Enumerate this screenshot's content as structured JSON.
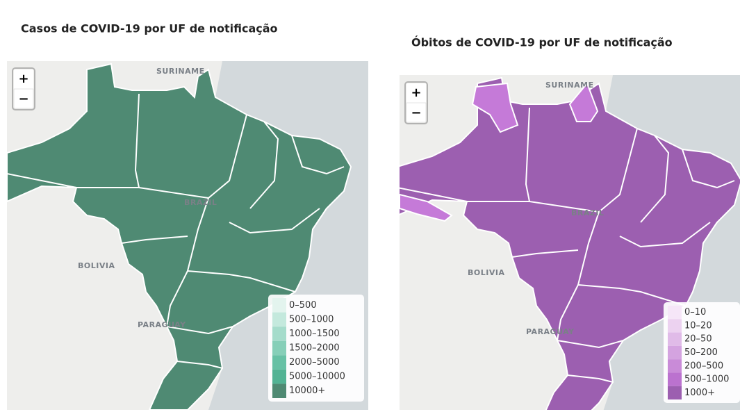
{
  "panels": [
    {
      "title": "Casos de COVID-19 por UF de notificação",
      "zoom": {
        "in": "+",
        "out": "−"
      },
      "labels": [
        "SURINAME",
        "BRAZIL",
        "BOLIVIA",
        "PARAGUAY"
      ],
      "fill": "#4f8a73",
      "legend": [
        {
          "label": "0–500",
          "color": "#e3f4ee"
        },
        {
          "label": "500–1000",
          "color": "#c4e9dd"
        },
        {
          "label": "1000–1500",
          "color": "#a5dccb"
        },
        {
          "label": "1500–2000",
          "color": "#86cfb8"
        },
        {
          "label": "2000–5000",
          "color": "#67c1a5"
        },
        {
          "label": "5000–10000",
          "color": "#52b394"
        },
        {
          "label": "10000+",
          "color": "#4f8a73"
        }
      ]
    },
    {
      "title": "Óbitos de COVID-19 por UF de notificação",
      "zoom": {
        "in": "+",
        "out": "−"
      },
      "labels": [
        "SURINAME",
        "BRAZIL",
        "BOLIVIA",
        "PARAGUAY"
      ],
      "fill": "#9c5fb0",
      "highlight": "#c57ad8",
      "legend": [
        {
          "label": "0–10",
          "color": "#f6e6f8"
        },
        {
          "label": "10–20",
          "color": "#ecd2f0"
        },
        {
          "label": "20–50",
          "color": "#e0bbe8"
        },
        {
          "label": "50–200",
          "color": "#d4a3e0"
        },
        {
          "label": "200–500",
          "color": "#c98bd8"
        },
        {
          "label": "500–1000",
          "color": "#bb72cf"
        },
        {
          "label": "1000+",
          "color": "#9c5fb0"
        }
      ]
    }
  ]
}
